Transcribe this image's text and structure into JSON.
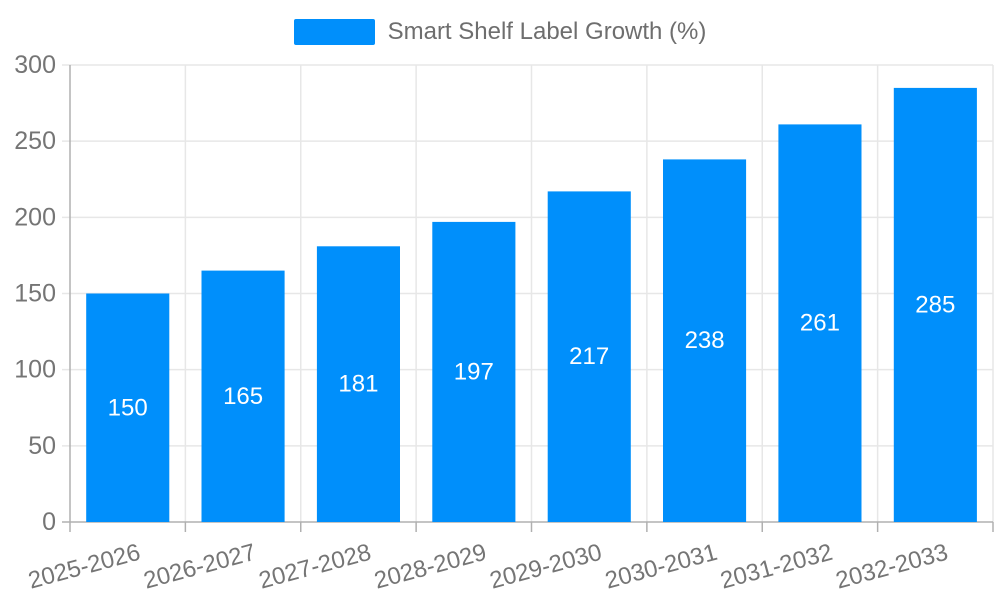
{
  "chart_data": {
    "type": "bar",
    "title": "Smart Shelf Label Growth (%)",
    "categories": [
      "2025-2026",
      "2026-2027",
      "2027-2028",
      "2028-2029",
      "2029-2030",
      "2030-2031",
      "2031-2032",
      "2032-2033"
    ],
    "series": [
      {
        "name": "Smart Shelf Label Growth (%)",
        "values": [
          150,
          165,
          181,
          197,
          217,
          238,
          261,
          285
        ]
      }
    ],
    "xlabel": "",
    "ylabel": "",
    "ylim": [
      0,
      300
    ],
    "ytick_step": 50,
    "yticks": [
      0,
      50,
      100,
      150,
      200,
      250,
      300
    ],
    "grid": "on",
    "legend_position": "top",
    "bar_color": "#008FFB",
    "bar_value_label_color": "#ffffff",
    "axis_label_color": "#757575",
    "grid_color": "#e7e7e7",
    "axis_line_color": "#b0b0b0",
    "x_label_rotation_deg": -15
  }
}
